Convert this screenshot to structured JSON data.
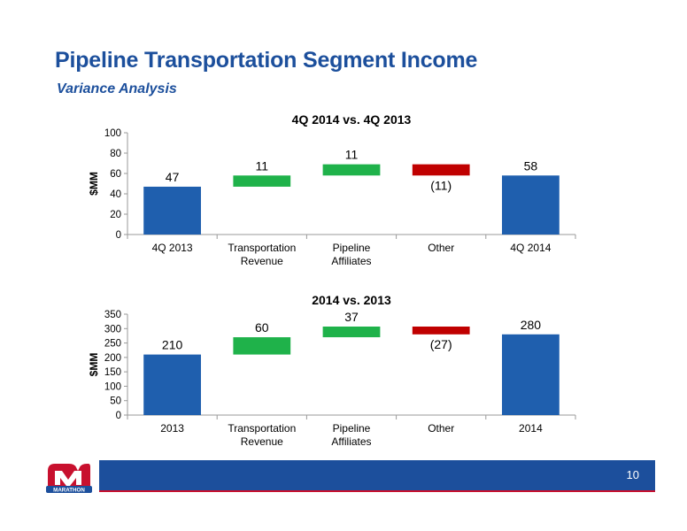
{
  "slide": {
    "title": "Pipeline Transportation Segment Income",
    "subtitle": "Variance Analysis",
    "page_number": "10",
    "logo_text": "MARATHON"
  },
  "colors": {
    "title": "#1c4f9c",
    "total_bar": "#1f5fae",
    "increase_bar": "#1fb24a",
    "decrease_bar": "#c00000",
    "footer": "#1c4f9c",
    "footer_accent": "#c8102e"
  },
  "chart_data": [
    {
      "type": "bar",
      "subtype": "waterfall",
      "title": "4Q 2014 vs. 4Q 2013",
      "ylabel": "$MM",
      "xlabel": "",
      "ylim": [
        0,
        100
      ],
      "yticks": [
        0,
        20,
        40,
        60,
        80,
        100
      ],
      "categories": [
        [
          "4Q 2013"
        ],
        [
          "Transportation",
          "Revenue"
        ],
        [
          "Pipeline",
          "Affiliates"
        ],
        [
          "Other"
        ],
        [
          "4Q 2014"
        ]
      ],
      "values": [
        47,
        11,
        11,
        -11,
        58
      ],
      "kinds": [
        "total",
        "delta",
        "delta",
        "delta",
        "total"
      ],
      "data_labels": [
        "47",
        "11",
        "11",
        "(11)",
        "58"
      ],
      "grid": false,
      "legend": false
    },
    {
      "type": "bar",
      "subtype": "waterfall",
      "title": "2014 vs. 2013",
      "ylabel": "$MM",
      "xlabel": "",
      "ylim": [
        0,
        350
      ],
      "yticks": [
        0,
        50,
        100,
        150,
        200,
        250,
        300,
        350
      ],
      "categories": [
        [
          "2013"
        ],
        [
          "Transportation",
          "Revenue"
        ],
        [
          "Pipeline",
          "Affiliates"
        ],
        [
          "Other"
        ],
        [
          "2014"
        ]
      ],
      "values": [
        210,
        60,
        37,
        -27,
        280
      ],
      "kinds": [
        "total",
        "delta",
        "delta",
        "delta",
        "total"
      ],
      "data_labels": [
        "210",
        "60",
        "37",
        "(27)",
        "280"
      ],
      "grid": false,
      "legend": false
    }
  ]
}
